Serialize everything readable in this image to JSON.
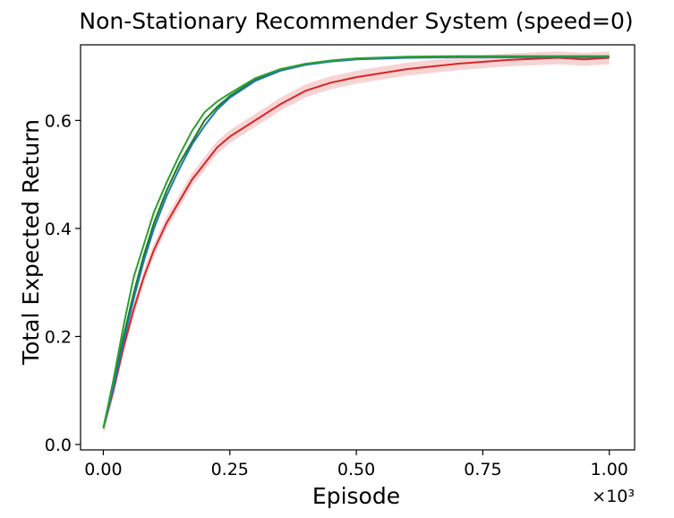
{
  "chart_data": {
    "type": "line",
    "title": "Non-Stationary Recommender System (speed=0)",
    "xlabel": "Episode",
    "ylabel": "Total Expected Return",
    "x_scale_label": "×10³",
    "xlim": [
      -0.045,
      1.05
    ],
    "ylim": [
      -0.01,
      0.74
    ],
    "x_ticks": [
      0.0,
      0.25,
      0.5,
      0.75,
      1.0
    ],
    "x_tick_labels": [
      "0.00",
      "0.25",
      "0.50",
      "0.75",
      "1.00"
    ],
    "y_ticks": [
      0.0,
      0.2,
      0.4,
      0.6
    ],
    "y_tick_labels": [
      "0.0",
      "0.2",
      "0.4",
      "0.6"
    ],
    "grid": false,
    "legend": "none",
    "x": [
      0.0,
      0.02,
      0.04,
      0.06,
      0.08,
      0.1,
      0.125,
      0.15,
      0.175,
      0.2,
      0.225,
      0.25,
      0.3,
      0.35,
      0.4,
      0.45,
      0.5,
      0.6,
      0.7,
      0.8,
      0.9,
      0.95,
      1.0
    ],
    "series": [
      {
        "color": "#d62728",
        "band": true,
        "values": [
          0.03,
          0.1,
          0.18,
          0.25,
          0.31,
          0.36,
          0.41,
          0.45,
          0.49,
          0.52,
          0.55,
          0.57,
          0.6,
          0.63,
          0.655,
          0.67,
          0.68,
          0.695,
          0.705,
          0.712,
          0.716,
          0.713,
          0.716
        ]
      },
      {
        "color": "#1a7a1a",
        "values": [
          0.03,
          0.11,
          0.2,
          0.28,
          0.35,
          0.41,
          0.47,
          0.52,
          0.56,
          0.6,
          0.625,
          0.645,
          0.675,
          0.693,
          0.703,
          0.71,
          0.714,
          0.717,
          0.718,
          0.718,
          0.718,
          0.718,
          0.718
        ]
      },
      {
        "color": "#1f77b4",
        "values": [
          0.03,
          0.105,
          0.19,
          0.27,
          0.34,
          0.4,
          0.46,
          0.51,
          0.555,
          0.59,
          0.62,
          0.642,
          0.673,
          0.692,
          0.703,
          0.709,
          0.713,
          0.716,
          0.717,
          0.717,
          0.717,
          0.717,
          0.717
        ]
      },
      {
        "color": "#2ca02c",
        "values": [
          0.03,
          0.12,
          0.22,
          0.31,
          0.37,
          0.43,
          0.485,
          0.535,
          0.58,
          0.615,
          0.635,
          0.65,
          0.678,
          0.695,
          0.705,
          0.711,
          0.715,
          0.718,
          0.719,
          0.719,
          0.719,
          0.719,
          0.719
        ]
      }
    ]
  }
}
